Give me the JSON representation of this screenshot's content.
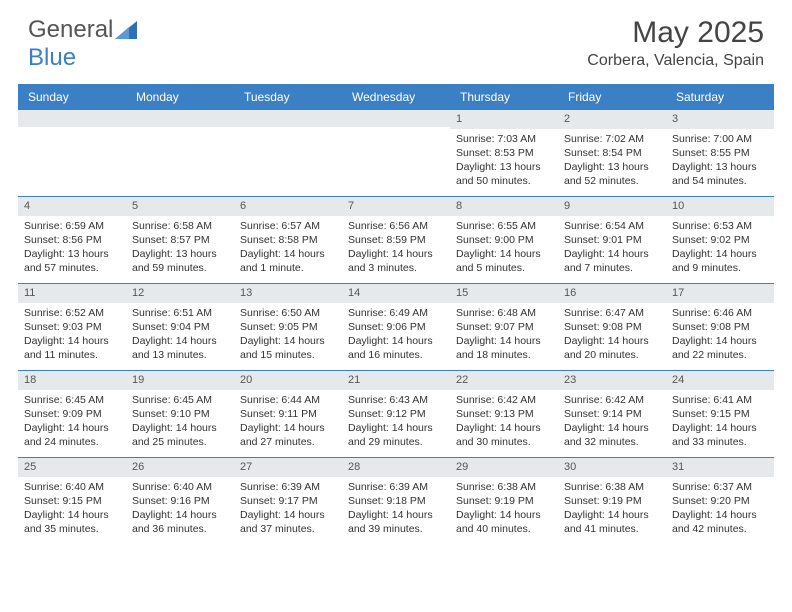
{
  "brand": {
    "part1": "General",
    "part2": "Blue"
  },
  "title": "May 2025",
  "location": "Corbera, Valencia, Spain",
  "colors": {
    "header_bg": "#3b7fc4",
    "band_bg": "#e6e9ec",
    "rule": "#3b7fc4",
    "text": "#333333",
    "title": "#444444"
  },
  "day_headers": [
    "Sunday",
    "Monday",
    "Tuesday",
    "Wednesday",
    "Thursday",
    "Friday",
    "Saturday"
  ],
  "weeks": [
    [
      null,
      null,
      null,
      null,
      {
        "n": "1",
        "sr": "Sunrise: 7:03 AM",
        "ss": "Sunset: 8:53 PM",
        "d1": "Daylight: 13 hours",
        "d2": "and 50 minutes."
      },
      {
        "n": "2",
        "sr": "Sunrise: 7:02 AM",
        "ss": "Sunset: 8:54 PM",
        "d1": "Daylight: 13 hours",
        "d2": "and 52 minutes."
      },
      {
        "n": "3",
        "sr": "Sunrise: 7:00 AM",
        "ss": "Sunset: 8:55 PM",
        "d1": "Daylight: 13 hours",
        "d2": "and 54 minutes."
      }
    ],
    [
      {
        "n": "4",
        "sr": "Sunrise: 6:59 AM",
        "ss": "Sunset: 8:56 PM",
        "d1": "Daylight: 13 hours",
        "d2": "and 57 minutes."
      },
      {
        "n": "5",
        "sr": "Sunrise: 6:58 AM",
        "ss": "Sunset: 8:57 PM",
        "d1": "Daylight: 13 hours",
        "d2": "and 59 minutes."
      },
      {
        "n": "6",
        "sr": "Sunrise: 6:57 AM",
        "ss": "Sunset: 8:58 PM",
        "d1": "Daylight: 14 hours",
        "d2": "and 1 minute."
      },
      {
        "n": "7",
        "sr": "Sunrise: 6:56 AM",
        "ss": "Sunset: 8:59 PM",
        "d1": "Daylight: 14 hours",
        "d2": "and 3 minutes."
      },
      {
        "n": "8",
        "sr": "Sunrise: 6:55 AM",
        "ss": "Sunset: 9:00 PM",
        "d1": "Daylight: 14 hours",
        "d2": "and 5 minutes."
      },
      {
        "n": "9",
        "sr": "Sunrise: 6:54 AM",
        "ss": "Sunset: 9:01 PM",
        "d1": "Daylight: 14 hours",
        "d2": "and 7 minutes."
      },
      {
        "n": "10",
        "sr": "Sunrise: 6:53 AM",
        "ss": "Sunset: 9:02 PM",
        "d1": "Daylight: 14 hours",
        "d2": "and 9 minutes."
      }
    ],
    [
      {
        "n": "11",
        "sr": "Sunrise: 6:52 AM",
        "ss": "Sunset: 9:03 PM",
        "d1": "Daylight: 14 hours",
        "d2": "and 11 minutes."
      },
      {
        "n": "12",
        "sr": "Sunrise: 6:51 AM",
        "ss": "Sunset: 9:04 PM",
        "d1": "Daylight: 14 hours",
        "d2": "and 13 minutes."
      },
      {
        "n": "13",
        "sr": "Sunrise: 6:50 AM",
        "ss": "Sunset: 9:05 PM",
        "d1": "Daylight: 14 hours",
        "d2": "and 15 minutes."
      },
      {
        "n": "14",
        "sr": "Sunrise: 6:49 AM",
        "ss": "Sunset: 9:06 PM",
        "d1": "Daylight: 14 hours",
        "d2": "and 16 minutes."
      },
      {
        "n": "15",
        "sr": "Sunrise: 6:48 AM",
        "ss": "Sunset: 9:07 PM",
        "d1": "Daylight: 14 hours",
        "d2": "and 18 minutes."
      },
      {
        "n": "16",
        "sr": "Sunrise: 6:47 AM",
        "ss": "Sunset: 9:08 PM",
        "d1": "Daylight: 14 hours",
        "d2": "and 20 minutes."
      },
      {
        "n": "17",
        "sr": "Sunrise: 6:46 AM",
        "ss": "Sunset: 9:08 PM",
        "d1": "Daylight: 14 hours",
        "d2": "and 22 minutes."
      }
    ],
    [
      {
        "n": "18",
        "sr": "Sunrise: 6:45 AM",
        "ss": "Sunset: 9:09 PM",
        "d1": "Daylight: 14 hours",
        "d2": "and 24 minutes."
      },
      {
        "n": "19",
        "sr": "Sunrise: 6:45 AM",
        "ss": "Sunset: 9:10 PM",
        "d1": "Daylight: 14 hours",
        "d2": "and 25 minutes."
      },
      {
        "n": "20",
        "sr": "Sunrise: 6:44 AM",
        "ss": "Sunset: 9:11 PM",
        "d1": "Daylight: 14 hours",
        "d2": "and 27 minutes."
      },
      {
        "n": "21",
        "sr": "Sunrise: 6:43 AM",
        "ss": "Sunset: 9:12 PM",
        "d1": "Daylight: 14 hours",
        "d2": "and 29 minutes."
      },
      {
        "n": "22",
        "sr": "Sunrise: 6:42 AM",
        "ss": "Sunset: 9:13 PM",
        "d1": "Daylight: 14 hours",
        "d2": "and 30 minutes."
      },
      {
        "n": "23",
        "sr": "Sunrise: 6:42 AM",
        "ss": "Sunset: 9:14 PM",
        "d1": "Daylight: 14 hours",
        "d2": "and 32 minutes."
      },
      {
        "n": "24",
        "sr": "Sunrise: 6:41 AM",
        "ss": "Sunset: 9:15 PM",
        "d1": "Daylight: 14 hours",
        "d2": "and 33 minutes."
      }
    ],
    [
      {
        "n": "25",
        "sr": "Sunrise: 6:40 AM",
        "ss": "Sunset: 9:15 PM",
        "d1": "Daylight: 14 hours",
        "d2": "and 35 minutes."
      },
      {
        "n": "26",
        "sr": "Sunrise: 6:40 AM",
        "ss": "Sunset: 9:16 PM",
        "d1": "Daylight: 14 hours",
        "d2": "and 36 minutes."
      },
      {
        "n": "27",
        "sr": "Sunrise: 6:39 AM",
        "ss": "Sunset: 9:17 PM",
        "d1": "Daylight: 14 hours",
        "d2": "and 37 minutes."
      },
      {
        "n": "28",
        "sr": "Sunrise: 6:39 AM",
        "ss": "Sunset: 9:18 PM",
        "d1": "Daylight: 14 hours",
        "d2": "and 39 minutes."
      },
      {
        "n": "29",
        "sr": "Sunrise: 6:38 AM",
        "ss": "Sunset: 9:19 PM",
        "d1": "Daylight: 14 hours",
        "d2": "and 40 minutes."
      },
      {
        "n": "30",
        "sr": "Sunrise: 6:38 AM",
        "ss": "Sunset: 9:19 PM",
        "d1": "Daylight: 14 hours",
        "d2": "and 41 minutes."
      },
      {
        "n": "31",
        "sr": "Sunrise: 6:37 AM",
        "ss": "Sunset: 9:20 PM",
        "d1": "Daylight: 14 hours",
        "d2": "and 42 minutes."
      }
    ]
  ]
}
